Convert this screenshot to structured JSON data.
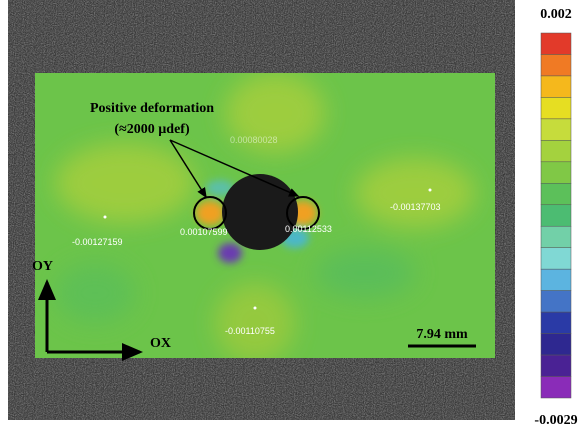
{
  "colorbar": {
    "max_label": "0.002",
    "min_label": "-0.0029"
  },
  "annotation": {
    "line1": "Positive deformation",
    "line2": "(≈2000 µdef)"
  },
  "point_labels": [
    "0.00080028",
    "-0.00127159",
    "0.00107599",
    "0.00112533",
    "-0.00137703",
    "-0.00110755"
  ],
  "axes": {
    "y": "OY",
    "x": "OX"
  },
  "scale_bar": "7.94 mm"
}
